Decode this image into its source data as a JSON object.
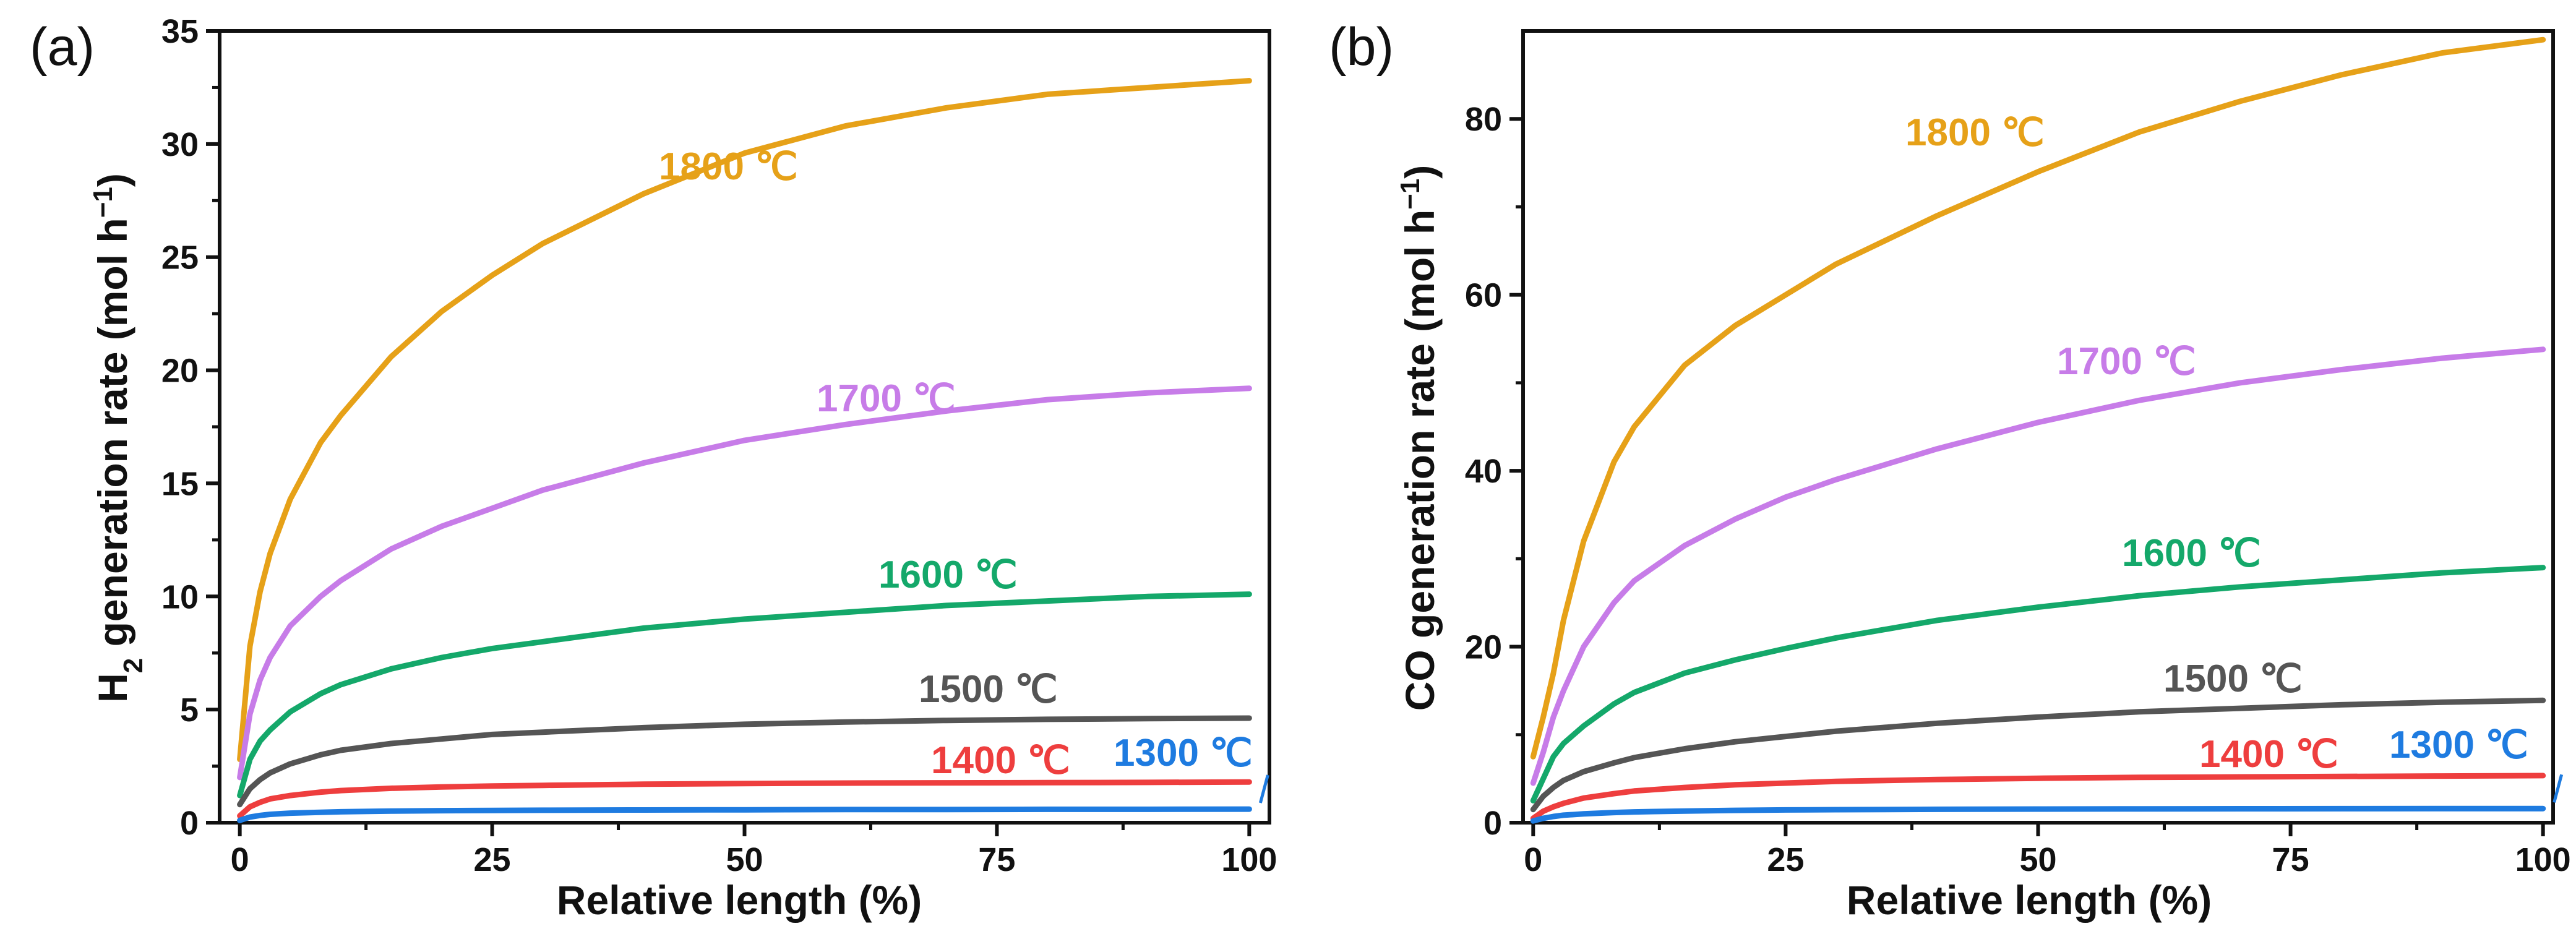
{
  "chart_data": [
    {
      "type": "line",
      "panel_label": "(a)",
      "title": "",
      "xlabel": "Relative length (%)",
      "ylabel_main": "H",
      "ylabel_sub": "2",
      "ylabel_rest": " generation rate (mol h",
      "ylabel_sup": "−1",
      "ylabel_close": ")",
      "xlim": [
        -2,
        102
      ],
      "ylim": [
        0,
        35
      ],
      "xticks": [
        0,
        25,
        50,
        75,
        100
      ],
      "yticks": [
        0,
        5,
        10,
        15,
        20,
        25,
        30,
        35
      ],
      "series": [
        {
          "name": "1800 ℃",
          "label": "1800 ℃",
          "color": "#E6A118",
          "x": [
            0,
            1,
            2,
            3,
            5,
            8,
            10,
            15,
            20,
            25,
            30,
            40,
            50,
            60,
            70,
            80,
            90,
            100
          ],
          "values": [
            2.8,
            7.8,
            10.2,
            11.9,
            14.3,
            16.8,
            18.0,
            20.6,
            22.6,
            24.2,
            25.6,
            27.8,
            29.6,
            30.8,
            31.6,
            32.2,
            32.5,
            32.8
          ]
        },
        {
          "name": "1700 ℃",
          "label": "1700 ℃",
          "color": "#C77CE8",
          "x": [
            0,
            1,
            2,
            3,
            5,
            8,
            10,
            15,
            20,
            25,
            30,
            40,
            50,
            60,
            70,
            80,
            90,
            100
          ],
          "values": [
            2.0,
            4.8,
            6.3,
            7.3,
            8.7,
            10.0,
            10.7,
            12.1,
            13.1,
            13.9,
            14.7,
            15.9,
            16.9,
            17.6,
            18.2,
            18.7,
            19.0,
            19.2
          ]
        },
        {
          "name": "1600 ℃",
          "label": "1600 ℃",
          "color": "#14A86A",
          "x": [
            0,
            1,
            2,
            3,
            5,
            8,
            10,
            15,
            20,
            25,
            30,
            40,
            50,
            60,
            70,
            80,
            90,
            100
          ],
          "values": [
            1.2,
            2.8,
            3.6,
            4.1,
            4.9,
            5.7,
            6.1,
            6.8,
            7.3,
            7.7,
            8.0,
            8.6,
            9.0,
            9.3,
            9.6,
            9.8,
            10.0,
            10.1
          ]
        },
        {
          "name": "1500 ℃",
          "label": "1500 ℃",
          "color": "#555555",
          "x": [
            0,
            1,
            2,
            3,
            5,
            8,
            10,
            15,
            20,
            25,
            30,
            40,
            50,
            60,
            70,
            80,
            90,
            100
          ],
          "values": [
            0.8,
            1.5,
            1.9,
            2.2,
            2.6,
            3.0,
            3.2,
            3.5,
            3.7,
            3.9,
            4.0,
            4.2,
            4.35,
            4.45,
            4.52,
            4.57,
            4.6,
            4.62
          ]
        },
        {
          "name": "1400 ℃",
          "label": "1400 ℃",
          "color": "#EE3E3E",
          "x": [
            0,
            1,
            2,
            3,
            5,
            8,
            10,
            15,
            20,
            25,
            30,
            40,
            50,
            60,
            70,
            80,
            90,
            100
          ],
          "values": [
            0.3,
            0.7,
            0.9,
            1.05,
            1.2,
            1.35,
            1.42,
            1.52,
            1.58,
            1.62,
            1.65,
            1.7,
            1.73,
            1.75,
            1.76,
            1.77,
            1.78,
            1.8
          ]
        },
        {
          "name": "1300 ℃",
          "label": "1300 ℃",
          "color": "#1E7BE0",
          "x": [
            0,
            1,
            2,
            3,
            5,
            8,
            10,
            15,
            20,
            25,
            30,
            40,
            50,
            60,
            70,
            80,
            90,
            100
          ],
          "values": [
            0.1,
            0.25,
            0.32,
            0.37,
            0.42,
            0.46,
            0.48,
            0.51,
            0.53,
            0.54,
            0.55,
            0.56,
            0.57,
            0.58,
            0.58,
            0.59,
            0.59,
            0.6
          ]
        }
      ]
    },
    {
      "type": "line",
      "panel_label": "(b)",
      "title": "",
      "xlabel": "Relative length (%)",
      "ylabel_main": "CO generation rate (mol h",
      "ylabel_sup": "−1",
      "ylabel_close": ")",
      "xlim": [
        -1,
        101
      ],
      "ylim": [
        0,
        90
      ],
      "xticks": [
        0,
        25,
        50,
        75,
        100
      ],
      "yticks": [
        0,
        20,
        40,
        60,
        80
      ],
      "series": [
        {
          "name": "1800 ℃",
          "label": "1800 ℃",
          "color": "#E6A118",
          "x": [
            0,
            1,
            2,
            3,
            5,
            8,
            10,
            15,
            20,
            25,
            30,
            40,
            50,
            60,
            70,
            80,
            90,
            100
          ],
          "values": [
            7.5,
            12,
            17,
            23,
            32,
            41,
            45,
            52,
            56.5,
            60,
            63.5,
            69,
            74,
            78.5,
            82,
            85,
            87.5,
            89
          ]
        },
        {
          "name": "1700 ℃",
          "label": "1700 ℃",
          "color": "#C77CE8",
          "x": [
            0,
            1,
            2,
            3,
            5,
            8,
            10,
            15,
            20,
            25,
            30,
            40,
            50,
            60,
            70,
            80,
            90,
            100
          ],
          "values": [
            4.5,
            8,
            12,
            15,
            20,
            25,
            27.5,
            31.5,
            34.5,
            37,
            39,
            42.5,
            45.5,
            48,
            50,
            51.5,
            52.8,
            53.8
          ]
        },
        {
          "name": "1600 ℃",
          "label": "1600 ℃",
          "color": "#14A86A",
          "x": [
            0,
            1,
            2,
            3,
            5,
            8,
            10,
            15,
            20,
            25,
            30,
            40,
            50,
            60,
            70,
            80,
            90,
            100
          ],
          "values": [
            2.5,
            5,
            7.5,
            9,
            11,
            13.5,
            14.8,
            17,
            18.5,
            19.8,
            21,
            23,
            24.5,
            25.8,
            26.8,
            27.6,
            28.4,
            29
          ]
        },
        {
          "name": "1500 ℃",
          "label": "1500 ℃",
          "color": "#555555",
          "x": [
            0,
            1,
            2,
            3,
            5,
            8,
            10,
            15,
            20,
            25,
            30,
            40,
            50,
            60,
            70,
            80,
            90,
            100
          ],
          "values": [
            1.5,
            3,
            4,
            4.8,
            5.8,
            6.8,
            7.4,
            8.4,
            9.2,
            9.8,
            10.4,
            11.3,
            12,
            12.6,
            13,
            13.4,
            13.7,
            13.9
          ]
        },
        {
          "name": "1400 ℃",
          "label": "1400 ℃",
          "color": "#EE3E3E",
          "x": [
            0,
            1,
            2,
            3,
            5,
            8,
            10,
            15,
            20,
            25,
            30,
            40,
            50,
            60,
            70,
            80,
            90,
            100
          ],
          "values": [
            0.5,
            1.3,
            1.8,
            2.2,
            2.8,
            3.3,
            3.6,
            4.0,
            4.3,
            4.5,
            4.7,
            4.9,
            5.05,
            5.15,
            5.2,
            5.25,
            5.3,
            5.35
          ]
        },
        {
          "name": "1300 ℃",
          "label": "1300 ℃",
          "color": "#1E7BE0",
          "x": [
            0,
            1,
            2,
            3,
            5,
            8,
            10,
            15,
            20,
            25,
            30,
            40,
            50,
            60,
            70,
            80,
            90,
            100
          ],
          "values": [
            0.2,
            0.5,
            0.7,
            0.85,
            1.0,
            1.15,
            1.22,
            1.32,
            1.4,
            1.45,
            1.48,
            1.52,
            1.55,
            1.57,
            1.58,
            1.59,
            1.6,
            1.6
          ]
        }
      ]
    }
  ]
}
